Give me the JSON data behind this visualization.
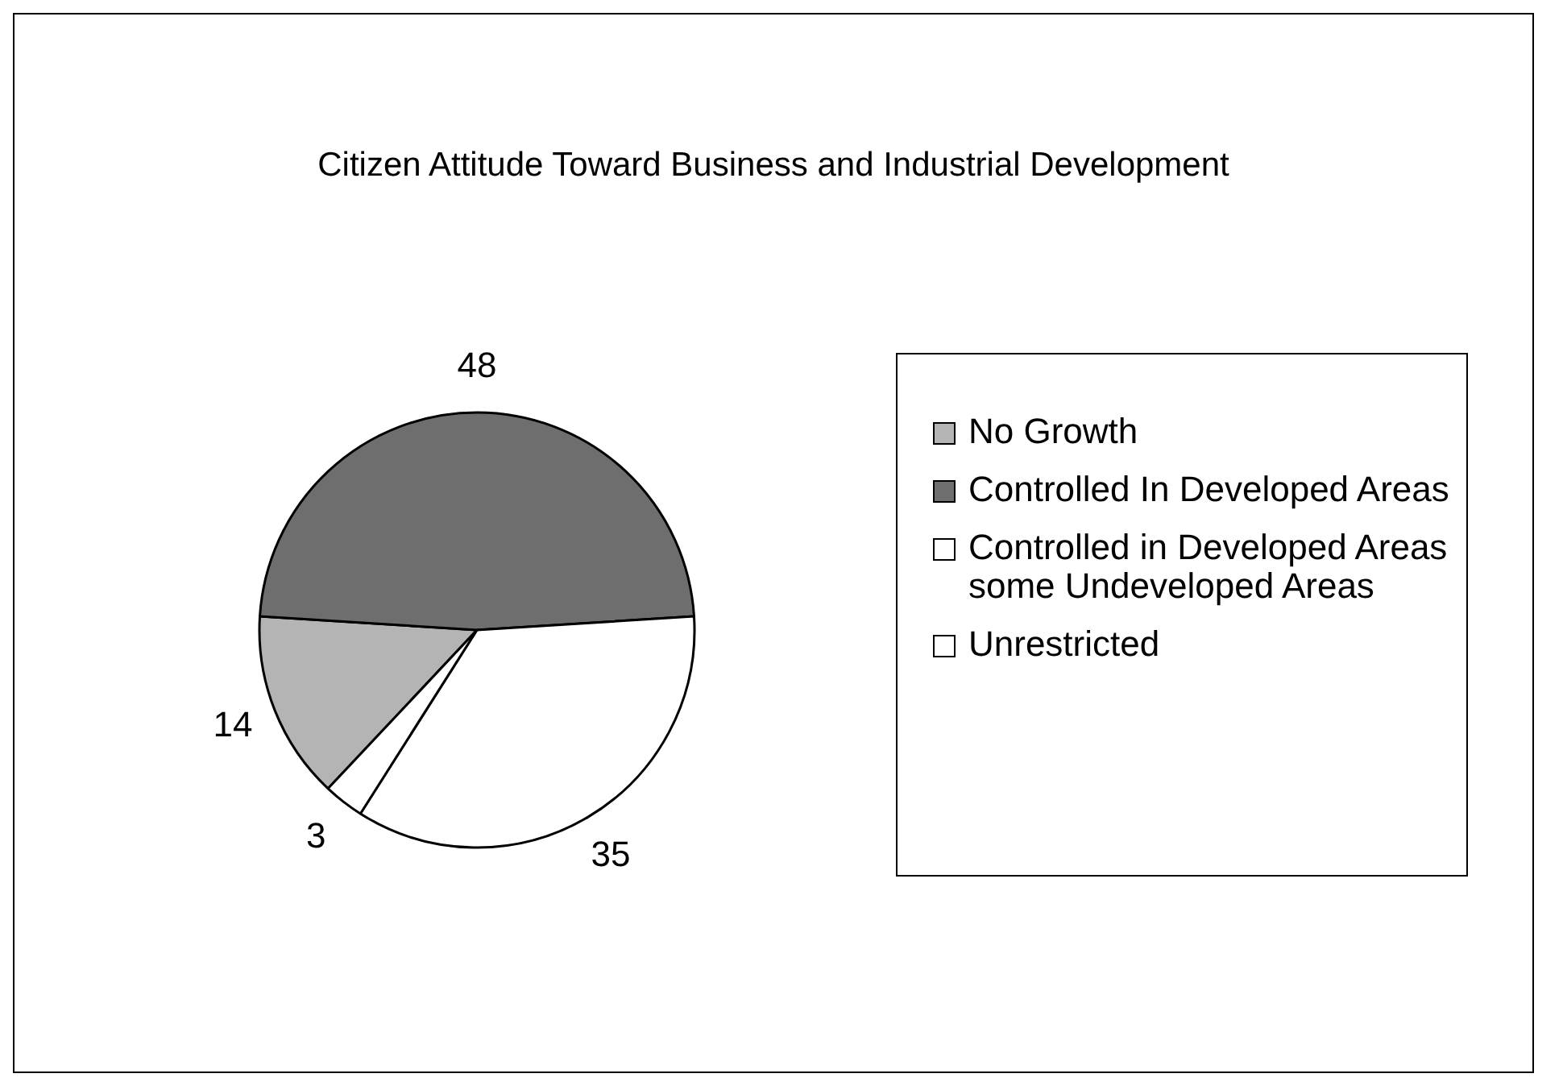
{
  "chart_data": {
    "type": "pie",
    "title": "Citizen Attitude Toward Business and Industrial Development",
    "categories": [
      "No Growth",
      "Controlled In Developed Areas",
      "Controlled in Developed Areas some Undeveloped Areas",
      "Unrestricted"
    ],
    "values": [
      14,
      48,
      35,
      3
    ],
    "colors": [
      "#b4b4b4",
      "#6e6e6e",
      "#ffffff",
      "#ffffff"
    ],
    "data_labels": true,
    "legend": "right"
  }
}
